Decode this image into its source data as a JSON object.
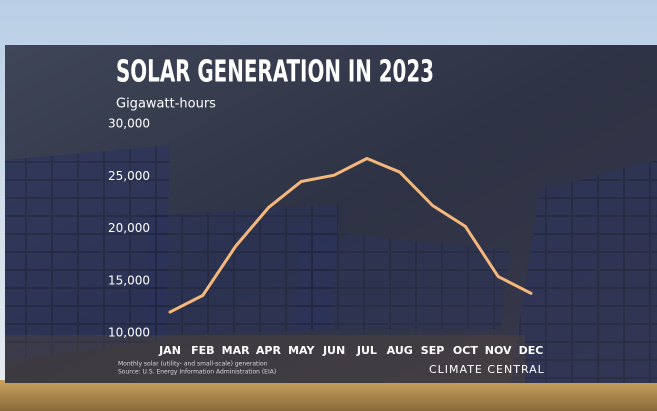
{
  "chart_data": {
    "type": "line",
    "title": "SOLAR GENERATION IN 2023",
    "subtitle": "Gigawatt-hours",
    "categories": [
      "JAN",
      "FEB",
      "MAR",
      "APR",
      "MAY",
      "JUN",
      "JUL",
      "AUG",
      "SEP",
      "OCT",
      "NOV",
      "DEC"
    ],
    "series": [
      {
        "name": "Solar generation",
        "color": "#f4b77c",
        "values": [
          12000,
          13600,
          18300,
          22000,
          24500,
          25100,
          26700,
          25400,
          22200,
          20200,
          15400,
          13800
        ]
      }
    ],
    "ylim": [
      10000,
      30000
    ],
    "yticks": [
      {
        "value": 10000,
        "label": "10,000"
      },
      {
        "value": 15000,
        "label": "15,000"
      },
      {
        "value": 20000,
        "label": "20,000"
      },
      {
        "value": 25000,
        "label": "25,000"
      },
      {
        "value": 30000,
        "label": "30,000"
      }
    ],
    "notes": "Monthly solar (utility- and small-scale) generation",
    "source": "Source: U.S. Energy Information Administration (EIA)",
    "credit": "CLIMATE CENTRAL"
  }
}
